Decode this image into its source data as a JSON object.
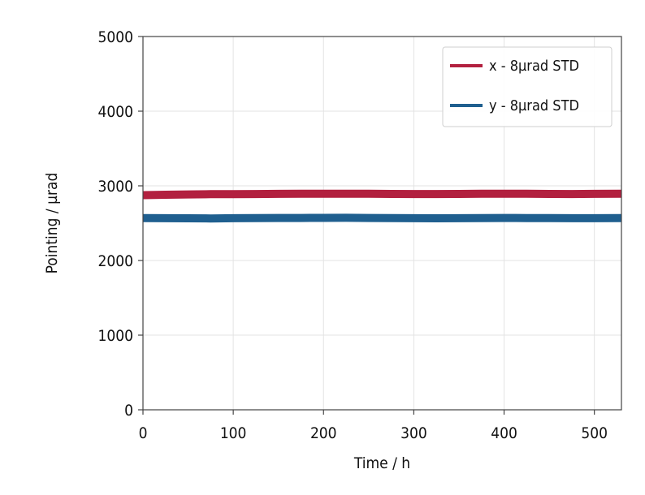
{
  "chart_data": {
    "type": "line",
    "xlabel": "Time / h",
    "ylabel": "Pointing / µrad",
    "xlim": [
      0,
      530
    ],
    "ylim": [
      0,
      5000
    ],
    "xticks": [
      "0",
      "100",
      "200",
      "300",
      "400",
      "500"
    ],
    "yticks": [
      "0",
      "1000",
      "2000",
      "3000",
      "4000",
      "5000"
    ],
    "grid": true,
    "legend_position": "top-right",
    "series": [
      {
        "name": "x - 8µrad STD",
        "color": "#b2203f",
        "x": [
          0,
          25,
          50,
          75,
          100,
          125,
          150,
          175,
          200,
          225,
          250,
          275,
          300,
          325,
          350,
          375,
          400,
          425,
          450,
          475,
          500,
          530
        ],
        "y": [
          2875,
          2880,
          2885,
          2888,
          2888,
          2890,
          2892,
          2893,
          2894,
          2895,
          2893,
          2891,
          2890,
          2890,
          2891,
          2893,
          2895,
          2893,
          2891,
          2890,
          2892,
          2895
        ]
      },
      {
        "name": "y - 8µrad STD",
        "color": "#1f5f8f",
        "x": [
          0,
          25,
          50,
          75,
          100,
          125,
          150,
          175,
          200,
          225,
          250,
          275,
          300,
          325,
          350,
          375,
          400,
          425,
          450,
          475,
          500,
          530
        ],
        "y": [
          2568,
          2566,
          2565,
          2563,
          2566,
          2568,
          2570,
          2570,
          2571,
          2572,
          2570,
          2568,
          2566,
          2565,
          2566,
          2567,
          2570,
          2568,
          2567,
          2566,
          2566,
          2567
        ]
      }
    ]
  }
}
